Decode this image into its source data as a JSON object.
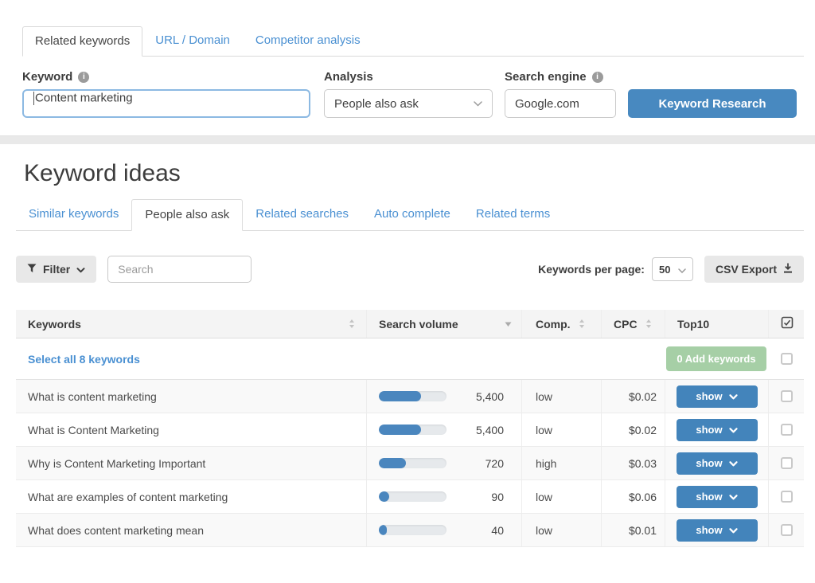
{
  "top_tabs": [
    {
      "label": "Related keywords",
      "active": true
    },
    {
      "label": "URL / Domain",
      "active": false
    },
    {
      "label": "Competitor analysis",
      "active": false
    }
  ],
  "form": {
    "keyword_label": "Keyword",
    "keyword_value": "Content marketing",
    "analysis_label": "Analysis",
    "analysis_value": "People also ask",
    "search_engine_label": "Search engine",
    "search_engine_value": "Google.com",
    "submit_label": "Keyword Research"
  },
  "section_title": "Keyword ideas",
  "sub_tabs": [
    {
      "label": "Similar keywords",
      "active": false
    },
    {
      "label": "People also ask",
      "active": true
    },
    {
      "label": "Related searches",
      "active": false
    },
    {
      "label": "Auto complete",
      "active": false
    },
    {
      "label": "Related terms",
      "active": false
    }
  ],
  "toolbar": {
    "filter_label": "Filter",
    "search_placeholder": "Search",
    "per_page_label": "Keywords per page:",
    "per_page_value": "50",
    "csv_label": "CSV Export"
  },
  "table": {
    "headers": {
      "keywords": "Keywords",
      "search_volume": "Search volume",
      "comp": "Comp.",
      "cpc": "CPC",
      "top10": "Top10"
    },
    "select_all_label": "Select all 8 keywords",
    "add_button_label": "0 Add keywords",
    "show_label": "show",
    "rows": [
      {
        "keyword": "What is content marketing",
        "volume": "5,400",
        "bar_percent": 62,
        "comp": "low",
        "cpc": "$0.02"
      },
      {
        "keyword": "What is Content Marketing",
        "volume": "5,400",
        "bar_percent": 62,
        "comp": "low",
        "cpc": "$0.02"
      },
      {
        "keyword": "Why is Content Marketing Important",
        "volume": "720",
        "bar_percent": 40,
        "comp": "high",
        "cpc": "$0.03"
      },
      {
        "keyword": "What are examples of content marketing",
        "volume": "90",
        "bar_percent": 15,
        "comp": "low",
        "cpc": "$0.06"
      },
      {
        "keyword": "What does content marketing mean",
        "volume": "40",
        "bar_percent": 12,
        "comp": "low",
        "cpc": "$0.01"
      }
    ]
  },
  "colors": {
    "accent_blue": "#4889c0",
    "link_blue": "#4a90d2",
    "add_green": "#a6cfa6",
    "bar_blue": "#4a86be"
  }
}
